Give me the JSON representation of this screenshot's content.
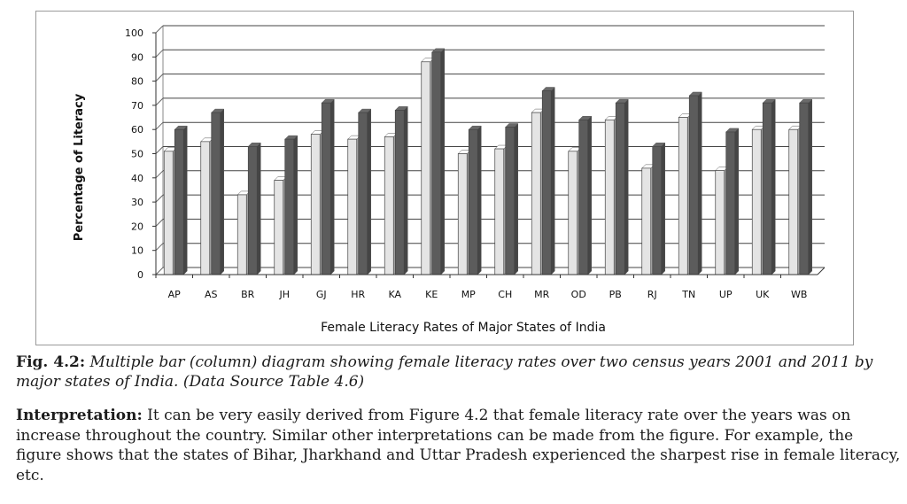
{
  "chart_data": {
    "type": "bar",
    "title": "",
    "xlabel": "Female Literacy Rates of Major States of India",
    "ylabel": "Percentage of Literacy",
    "ylim": [
      0,
      100
    ],
    "yticks": [
      0,
      10,
      20,
      30,
      40,
      50,
      60,
      70,
      80,
      90,
      100
    ],
    "grid": true,
    "legend": "none",
    "categories": [
      "AP",
      "AS",
      "BR",
      "JH",
      "GJ",
      "HR",
      "KA",
      "KE",
      "MP",
      "CH",
      "MR",
      "OD",
      "PB",
      "RJ",
      "TN",
      "UP",
      "UK",
      "WB"
    ],
    "series": [
      {
        "color": "#e4e4e4",
        "values": [
          51,
          55,
          33,
          39,
          58,
          56,
          57,
          88,
          50,
          52,
          67,
          51,
          64,
          44,
          65,
          43,
          60,
          60
        ]
      },
      {
        "color": "#5c5c5c",
        "values": [
          60,
          67,
          53,
          56,
          71,
          67,
          68,
          92,
          60,
          61,
          76,
          64,
          71,
          53,
          74,
          59,
          71,
          71
        ]
      }
    ]
  },
  "caption": {
    "fig_num": "Fig. 4.2:",
    "text": " Multiple bar (column) diagram showing female literacy rates over two census years 2001 and 2011 by major states of India. (Data Source Table 4.6)"
  },
  "interpretation": {
    "lead": "Interpretation:",
    "text": " It can be very easily derived from Figure 4.2 that female literacy rate over the years was on increase throughout the country. Similar other interpretations can be made from the figure. For example, the figure shows that the states of Bihar, Jharkhand and Uttar Pradesh experienced the sharpest rise in female literacy, etc."
  }
}
